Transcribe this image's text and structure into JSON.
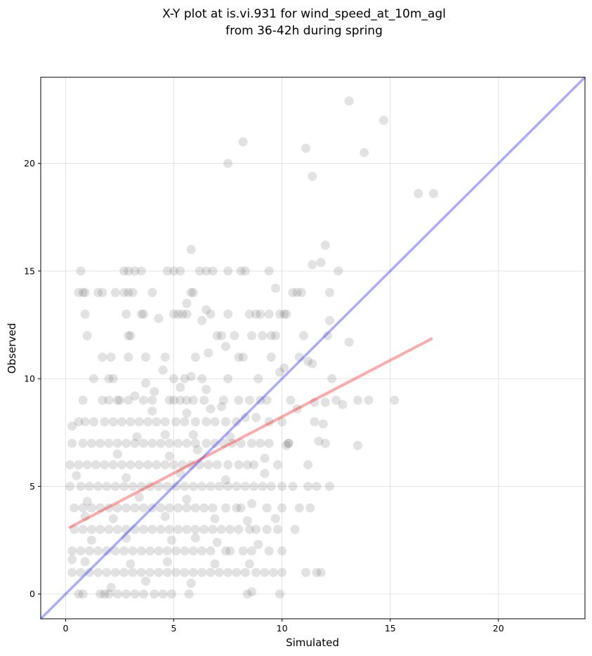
{
  "chart_data": {
    "type": "scatter",
    "title": [
      "X-Y plot at is.vi.931 for wind_speed_at_10m_agl",
      "from 36-42h during spring"
    ],
    "xlabel": "Simulated",
    "ylabel": "Observed",
    "xlim": [
      -1.15,
      24.0
    ],
    "ylim": [
      -1.15,
      24.0
    ],
    "xticks": [
      0,
      5,
      10,
      15,
      20
    ],
    "yticks": [
      0,
      5,
      10,
      15,
      20
    ],
    "grid": true,
    "colors": {
      "points": "#555555",
      "identity_line": "#0000ff",
      "regression_line": "#ff0000"
    },
    "identity_line": {
      "x": [
        -1.15,
        24.0
      ],
      "y": [
        -1.15,
        24.0
      ]
    },
    "regression_line": {
      "x": [
        0.2,
        16.9
      ],
      "y": [
        3.1,
        11.85
      ]
    },
    "points": [
      [
        13.1,
        22.9
      ],
      [
        14.7,
        22.0
      ],
      [
        8.2,
        21.0
      ],
      [
        11.1,
        20.7
      ],
      [
        13.8,
        20.5
      ],
      [
        7.5,
        20.0
      ],
      [
        11.4,
        19.4
      ],
      [
        16.3,
        18.6
      ],
      [
        17.0,
        18.6
      ],
      [
        5.8,
        16.0
      ],
      [
        12.0,
        16.2
      ],
      [
        11.4,
        15.3
      ],
      [
        11.8,
        15.4
      ],
      [
        12.6,
        15.0
      ],
      [
        9.4,
        15.0
      ],
      [
        7.5,
        15.0
      ],
      [
        8.1,
        15.0
      ],
      [
        8.3,
        15.0
      ],
      [
        6.5,
        15.0
      ],
      [
        6.8,
        15.0
      ],
      [
        6.2,
        15.0
      ],
      [
        5.0,
        15.0
      ],
      [
        5.3,
        15.0
      ],
      [
        4.7,
        15.0
      ],
      [
        3.5,
        15.0
      ],
      [
        3.2,
        15.0
      ],
      [
        2.7,
        15.0
      ],
      [
        2.9,
        15.0
      ],
      [
        0.7,
        15.0
      ],
      [
        9.7,
        14.2
      ],
      [
        10.5,
        14.0
      ],
      [
        10.9,
        14.0
      ],
      [
        10.7,
        14.0
      ],
      [
        12.2,
        14.0
      ],
      [
        5.8,
        14.0
      ],
      [
        5.9,
        14.0
      ],
      [
        4.0,
        14.0
      ],
      [
        2.7,
        14.0
      ],
      [
        2.9,
        14.0
      ],
      [
        3.1,
        14.0
      ],
      [
        1.5,
        14.0
      ],
      [
        1.7,
        14.0
      ],
      [
        2.3,
        14.0
      ],
      [
        0.6,
        14.0
      ],
      [
        0.8,
        14.0
      ],
      [
        0.9,
        14.0
      ],
      [
        6.5,
        13.2
      ],
      [
        6.7,
        13.0
      ],
      [
        7.5,
        13.0
      ],
      [
        8.5,
        13.0
      ],
      [
        8.8,
        13.0
      ],
      [
        9.0,
        13.0
      ],
      [
        9.4,
        13.0
      ],
      [
        9.9,
        13.0
      ],
      [
        10.2,
        13.0
      ],
      [
        10.1,
        13.0
      ],
      [
        5.0,
        13.0
      ],
      [
        5.2,
        13.0
      ],
      [
        5.4,
        13.0
      ],
      [
        5.6,
        13.0
      ],
      [
        3.5,
        13.0
      ],
      [
        3.6,
        13.0
      ],
      [
        2.8,
        13.0
      ],
      [
        0.9,
        13.0
      ],
      [
        5.6,
        13.5
      ],
      [
        6.3,
        12.7
      ],
      [
        12.2,
        12.7
      ],
      [
        4.3,
        12.8
      ],
      [
        13.1,
        11.7
      ],
      [
        7.0,
        12.0
      ],
      [
        7.2,
        12.0
      ],
      [
        7.8,
        12.0
      ],
      [
        8.6,
        12.0
      ],
      [
        9.1,
        12.0
      ],
      [
        9.5,
        12.0
      ],
      [
        9.7,
        12.0
      ],
      [
        11.0,
        12.0
      ],
      [
        12.1,
        12.0
      ],
      [
        3.0,
        12.0
      ],
      [
        2.9,
        12.0
      ],
      [
        1.0,
        12.0
      ],
      [
        6.6,
        11.2
      ],
      [
        7.4,
        11.5
      ],
      [
        8.0,
        11.0
      ],
      [
        8.2,
        11.0
      ],
      [
        9.5,
        11.0
      ],
      [
        10.8,
        11.0
      ],
      [
        11.2,
        10.8
      ],
      [
        11.4,
        10.7
      ],
      [
        6.0,
        11.0
      ],
      [
        4.6,
        11.0
      ],
      [
        3.7,
        11.0
      ],
      [
        2.9,
        11.0
      ],
      [
        1.7,
        11.0
      ],
      [
        2.1,
        11.0
      ],
      [
        12.3,
        10.0
      ],
      [
        10.1,
        10.5
      ],
      [
        9.9,
        10.3
      ],
      [
        7.5,
        10.0
      ],
      [
        8.9,
        10.0
      ],
      [
        6.3,
        10.0
      ],
      [
        5.5,
        10.0
      ],
      [
        5.8,
        10.1
      ],
      [
        5.0,
        10.0
      ],
      [
        4.5,
        10.4
      ],
      [
        3.7,
        9.8
      ],
      [
        2.0,
        10.0
      ],
      [
        2.2,
        10.0
      ],
      [
        1.3,
        10.0
      ],
      [
        0.8,
        9.0
      ],
      [
        1.7,
        9.0
      ],
      [
        2.0,
        9.0
      ],
      [
        2.4,
        9.0
      ],
      [
        2.5,
        9.0
      ],
      [
        2.9,
        9.0
      ],
      [
        3.6,
        9.0
      ],
      [
        4.0,
        9.0
      ],
      [
        4.8,
        9.0
      ],
      [
        5.0,
        9.0
      ],
      [
        5.3,
        9.0
      ],
      [
        5.6,
        9.0
      ],
      [
        5.9,
        9.0
      ],
      [
        6.4,
        9.0
      ],
      [
        7.3,
        9.0
      ],
      [
        8.0,
        9.0
      ],
      [
        8.5,
        9.0
      ],
      [
        9.0,
        9.0
      ],
      [
        9.3,
        9.0
      ],
      [
        10.4,
        9.0
      ],
      [
        11.5,
        8.9
      ],
      [
        12.0,
        8.9
      ],
      [
        12.5,
        9.0
      ],
      [
        12.8,
        8.8
      ],
      [
        13.5,
        9.0
      ],
      [
        14.0,
        9.0
      ],
      [
        15.2,
        9.0
      ],
      [
        6.5,
        9.5
      ],
      [
        5.3,
        9.6
      ],
      [
        4.1,
        9.4
      ],
      [
        3.2,
        9.2
      ],
      [
        7.2,
        8.7
      ],
      [
        8.8,
        8.2
      ],
      [
        9.4,
        8.0
      ],
      [
        10.0,
        8.0
      ],
      [
        11.5,
        8.0
      ],
      [
        11.9,
        7.9
      ],
      [
        10.7,
        8.6
      ],
      [
        0.3,
        7.8
      ],
      [
        0.6,
        8.0
      ],
      [
        0.9,
        8.0
      ],
      [
        1.3,
        8.0
      ],
      [
        1.8,
        8.0
      ],
      [
        2.2,
        8.0
      ],
      [
        2.6,
        8.0
      ],
      [
        3.0,
        8.0
      ],
      [
        3.4,
        8.0
      ],
      [
        3.8,
        8.0
      ],
      [
        4.2,
        8.0
      ],
      [
        4.6,
        8.0
      ],
      [
        5.1,
        8.0
      ],
      [
        5.5,
        8.0
      ],
      [
        6.0,
        8.0
      ],
      [
        6.5,
        8.0
      ],
      [
        6.9,
        8.0
      ],
      [
        7.4,
        8.0
      ],
      [
        7.9,
        8.0
      ],
      [
        8.3,
        8.2
      ],
      [
        4.0,
        8.5
      ],
      [
        5.6,
        8.4
      ],
      [
        6.7,
        8.6
      ],
      [
        0.3,
        7.0
      ],
      [
        0.8,
        7.0
      ],
      [
        1.2,
        7.0
      ],
      [
        1.6,
        7.0
      ],
      [
        2.0,
        7.0
      ],
      [
        2.4,
        7.0
      ],
      [
        2.8,
        7.0
      ],
      [
        3.2,
        7.0
      ],
      [
        3.6,
        7.0
      ],
      [
        4.0,
        7.0
      ],
      [
        4.4,
        7.0
      ],
      [
        4.8,
        7.0
      ],
      [
        5.2,
        7.0
      ],
      [
        5.6,
        7.0
      ],
      [
        6.0,
        7.0
      ],
      [
        6.5,
        7.0
      ],
      [
        6.9,
        7.0
      ],
      [
        7.3,
        7.0
      ],
      [
        7.7,
        7.0
      ],
      [
        8.1,
        7.0
      ],
      [
        8.6,
        7.0
      ],
      [
        9.0,
        7.0
      ],
      [
        9.4,
        7.0
      ],
      [
        10.3,
        7.0
      ],
      [
        10.2,
        6.9
      ],
      [
        11.7,
        7.1
      ],
      [
        12.0,
        7.0
      ],
      [
        13.5,
        6.9
      ],
      [
        3.3,
        7.3
      ],
      [
        4.6,
        7.4
      ],
      [
        5.9,
        7.4
      ],
      [
        7.6,
        7.3
      ],
      [
        0.2,
        6.0
      ],
      [
        0.6,
        6.0
      ],
      [
        1.0,
        6.0
      ],
      [
        1.4,
        6.0
      ],
      [
        1.8,
        6.0
      ],
      [
        2.2,
        6.0
      ],
      [
        2.6,
        6.0
      ],
      [
        3.0,
        6.0
      ],
      [
        3.4,
        6.0
      ],
      [
        3.8,
        6.0
      ],
      [
        4.2,
        6.0
      ],
      [
        4.6,
        6.0
      ],
      [
        5.0,
        6.0
      ],
      [
        5.4,
        6.0
      ],
      [
        5.8,
        6.0
      ],
      [
        6.2,
        6.0
      ],
      [
        6.6,
        6.0
      ],
      [
        7.0,
        6.0
      ],
      [
        7.5,
        6.0
      ],
      [
        8.0,
        6.0
      ],
      [
        8.4,
        6.0
      ],
      [
        8.7,
        6.0
      ],
      [
        9.2,
        6.3
      ],
      [
        9.8,
        6.0
      ],
      [
        10.3,
        7.0
      ],
      [
        11.2,
        6.0
      ],
      [
        2.4,
        6.5
      ],
      [
        4.8,
        6.4
      ],
      [
        6.1,
        6.7
      ],
      [
        0.2,
        5.0
      ],
      [
        0.7,
        5.0
      ],
      [
        1.1,
        5.0
      ],
      [
        1.5,
        5.0
      ],
      [
        1.9,
        5.0
      ],
      [
        2.3,
        5.0
      ],
      [
        2.7,
        5.0
      ],
      [
        3.1,
        5.0
      ],
      [
        3.5,
        5.0
      ],
      [
        3.9,
        5.0
      ],
      [
        4.3,
        5.0
      ],
      [
        4.7,
        5.0
      ],
      [
        5.1,
        5.0
      ],
      [
        5.5,
        5.0
      ],
      [
        5.9,
        5.0
      ],
      [
        6.3,
        5.0
      ],
      [
        6.7,
        5.0
      ],
      [
        7.1,
        5.0
      ],
      [
        7.5,
        5.0
      ],
      [
        7.9,
        5.0
      ],
      [
        8.3,
        5.0
      ],
      [
        8.7,
        5.0
      ],
      [
        9.1,
        5.0
      ],
      [
        9.5,
        5.0
      ],
      [
        10.0,
        5.0
      ],
      [
        10.5,
        5.0
      ],
      [
        11.2,
        5.0
      ],
      [
        11.6,
        5.0
      ],
      [
        12.2,
        5.0
      ],
      [
        0.5,
        5.5
      ],
      [
        2.8,
        5.4
      ],
      [
        5.3,
        5.6
      ],
      [
        7.4,
        5.3
      ],
      [
        9.2,
        5.6
      ],
      [
        0.4,
        4.0
      ],
      [
        0.8,
        4.0
      ],
      [
        1.2,
        4.0
      ],
      [
        1.6,
        4.0
      ],
      [
        2.0,
        4.0
      ],
      [
        2.4,
        4.0
      ],
      [
        2.8,
        4.0
      ],
      [
        3.2,
        4.0
      ],
      [
        3.6,
        4.0
      ],
      [
        4.0,
        4.0
      ],
      [
        4.4,
        4.0
      ],
      [
        4.8,
        4.0
      ],
      [
        5.2,
        4.0
      ],
      [
        5.6,
        4.0
      ],
      [
        6.0,
        4.0
      ],
      [
        6.4,
        4.0
      ],
      [
        6.8,
        4.0
      ],
      [
        7.4,
        4.0
      ],
      [
        7.9,
        4.0
      ],
      [
        8.1,
        4.0
      ],
      [
        9.3,
        4.0
      ],
      [
        10.0,
        4.0
      ],
      [
        10.8,
        4.0
      ],
      [
        11.3,
        4.0
      ],
      [
        1.0,
        4.3
      ],
      [
        3.4,
        4.5
      ],
      [
        5.6,
        4.4
      ],
      [
        8.6,
        4.2
      ],
      [
        9.7,
        3.5
      ],
      [
        0.4,
        3.0
      ],
      [
        0.8,
        3.0
      ],
      [
        1.2,
        3.0
      ],
      [
        1.6,
        3.0
      ],
      [
        2.0,
        3.0
      ],
      [
        2.4,
        3.0
      ],
      [
        2.8,
        3.0
      ],
      [
        3.2,
        3.0
      ],
      [
        3.6,
        3.0
      ],
      [
        4.0,
        3.0
      ],
      [
        4.4,
        3.0
      ],
      [
        4.8,
        3.0
      ],
      [
        5.2,
        3.0
      ],
      [
        5.6,
        3.0
      ],
      [
        6.0,
        3.0
      ],
      [
        6.4,
        3.0
      ],
      [
        6.8,
        3.0
      ],
      [
        7.2,
        3.0
      ],
      [
        7.6,
        3.0
      ],
      [
        8.0,
        3.0
      ],
      [
        8.5,
        3.0
      ],
      [
        8.8,
        3.0
      ],
      [
        9.3,
        3.0
      ],
      [
        9.8,
        3.0
      ],
      [
        10.6,
        3.0
      ],
      [
        0.9,
        3.6
      ],
      [
        2.2,
        3.5
      ],
      [
        4.6,
        3.6
      ],
      [
        6.9,
        3.5
      ],
      [
        8.4,
        3.4
      ],
      [
        0.3,
        2.0
      ],
      [
        0.7,
        2.0
      ],
      [
        1.1,
        2.0
      ],
      [
        1.5,
        2.0
      ],
      [
        1.9,
        2.0
      ],
      [
        2.3,
        2.0
      ],
      [
        2.7,
        2.0
      ],
      [
        3.1,
        2.0
      ],
      [
        3.5,
        2.0
      ],
      [
        3.9,
        2.0
      ],
      [
        4.3,
        2.0
      ],
      [
        4.7,
        2.0
      ],
      [
        5.1,
        2.0
      ],
      [
        5.5,
        2.0
      ],
      [
        5.9,
        2.0
      ],
      [
        6.3,
        2.0
      ],
      [
        6.7,
        2.0
      ],
      [
        7.4,
        2.0
      ],
      [
        7.6,
        2.0
      ],
      [
        8.2,
        2.0
      ],
      [
        8.6,
        2.0
      ],
      [
        8.9,
        2.3
      ],
      [
        9.4,
        2.0
      ],
      [
        10.0,
        2.0
      ],
      [
        0.3,
        1.6
      ],
      [
        1.2,
        2.5
      ],
      [
        2.8,
        2.6
      ],
      [
        4.9,
        2.5
      ],
      [
        6.0,
        2.6
      ],
      [
        7.0,
        2.4
      ],
      [
        0.3,
        1.0
      ],
      [
        0.7,
        1.0
      ],
      [
        1.1,
        1.0
      ],
      [
        1.5,
        1.0
      ],
      [
        1.9,
        1.0
      ],
      [
        2.3,
        1.0
      ],
      [
        2.7,
        1.0
      ],
      [
        3.1,
        1.0
      ],
      [
        3.5,
        1.0
      ],
      [
        3.9,
        1.0
      ],
      [
        4.3,
        1.0
      ],
      [
        4.7,
        1.0
      ],
      [
        5.1,
        1.0
      ],
      [
        5.5,
        1.0
      ],
      [
        5.9,
        1.0
      ],
      [
        6.3,
        1.0
      ],
      [
        6.7,
        1.0
      ],
      [
        7.1,
        1.0
      ],
      [
        7.5,
        1.0
      ],
      [
        7.9,
        1.0
      ],
      [
        8.3,
        1.0
      ],
      [
        8.8,
        1.0
      ],
      [
        9.2,
        1.0
      ],
      [
        9.6,
        1.0
      ],
      [
        10.0,
        1.0
      ],
      [
        11.1,
        1.0
      ],
      [
        11.6,
        1.0
      ],
      [
        11.8,
        1.0
      ],
      [
        0.9,
        1.5
      ],
      [
        3.0,
        1.4
      ],
      [
        4.7,
        1.5
      ],
      [
        5.8,
        0.5
      ],
      [
        6.9,
        1.4
      ],
      [
        8.5,
        1.4
      ],
      [
        0.6,
        0.0
      ],
      [
        0.8,
        0.0
      ],
      [
        1.6,
        0.0
      ],
      [
        1.8,
        0.0
      ],
      [
        2.0,
        0.0
      ],
      [
        2.4,
        0.0
      ],
      [
        2.8,
        0.0
      ],
      [
        3.2,
        0.0
      ],
      [
        3.6,
        0.0
      ],
      [
        4.1,
        0.0
      ],
      [
        4.5,
        0.0
      ],
      [
        4.9,
        0.0
      ],
      [
        5.7,
        0.0
      ],
      [
        8.4,
        0.0
      ],
      [
        8.6,
        0.1
      ],
      [
        9.9,
        0.0
      ],
      [
        3.7,
        0.6
      ],
      [
        2.1,
        0.3
      ]
    ]
  }
}
